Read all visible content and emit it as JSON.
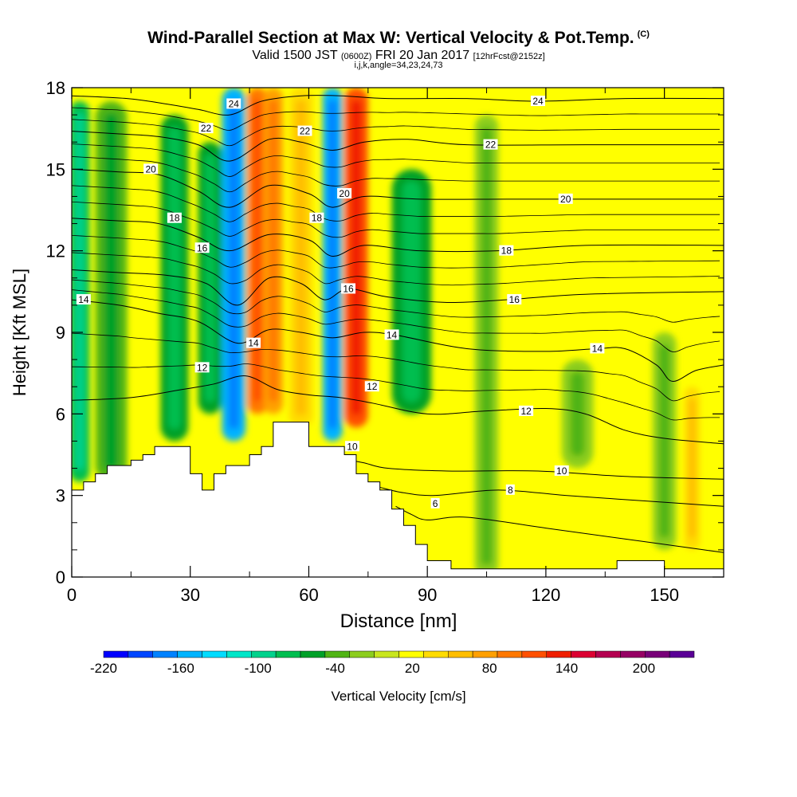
{
  "header": {
    "title": "Wind-Parallel Section at Max W: Vertical Velocity & Pot.Temp.",
    "copyright": "(C)",
    "valid_prefix": "Valid 1500 JST",
    "valid_utc": "(0600Z)",
    "valid_date": "FRI 20 Jan 2017",
    "forecast": "[12hrFcst@2152z]",
    "indices": "i,j,k,angle=34,23,24,73"
  },
  "chart_data": {
    "type": "heatmap",
    "title": "Wind-Parallel Section at Max W: Vertical Velocity & Pot.Temp.",
    "xlabel": "Distance [nm]",
    "ylabel": "Height [Kft MSL]",
    "xlim": [
      0,
      165
    ],
    "ylim": [
      0,
      18
    ],
    "x_ticks": [
      0,
      30,
      60,
      90,
      120,
      150
    ],
    "y_ticks": [
      0,
      3,
      6,
      9,
      12,
      15,
      18
    ],
    "colorbar": {
      "label": "Vertical Velocity [cm/s]",
      "tick_labels": [
        "-220",
        "-160",
        "-100",
        "-40",
        "20",
        "80",
        "140",
        "200"
      ],
      "levels": [
        -220,
        -200,
        -180,
        -160,
        -140,
        -120,
        -100,
        -80,
        -60,
        -40,
        -20,
        0,
        20,
        40,
        60,
        80,
        100,
        120,
        140,
        160,
        180,
        200,
        220
      ],
      "colors": [
        "#0000ff",
        "#0046ff",
        "#0082ff",
        "#00b4ff",
        "#00dcff",
        "#00e6c8",
        "#00d28c",
        "#00be50",
        "#00a028",
        "#50b414",
        "#8ccd1e",
        "#c8e61e",
        "#ffff00",
        "#ffdc00",
        "#ffbe00",
        "#ffa000",
        "#ff7800",
        "#ff5000",
        "#f01e00",
        "#dc0032",
        "#b40050",
        "#960064",
        "#780078",
        "#5a0096"
      ]
    },
    "velocity_field": [
      {
        "x": 2,
        "y": [
          3.5,
          17.5
        ],
        "w": -70,
        "sx": 2.5
      },
      {
        "x": 10,
        "y": [
          3.5,
          17.5
        ],
        "w": -40,
        "sx": 4
      },
      {
        "x": 26,
        "y": [
          5,
          17
        ],
        "w": -60,
        "sx": 3.5
      },
      {
        "x": 35,
        "y": [
          6,
          16
        ],
        "w": -50,
        "sx": 3
      },
      {
        "x": 41,
        "y": [
          5,
          18
        ],
        "w": -150,
        "sx": 3
      },
      {
        "x": 47,
        "y": [
          6,
          18
        ],
        "w": 100,
        "sx": 2.5
      },
      {
        "x": 51,
        "y": [
          6,
          18
        ],
        "w": 80,
        "sx": 2.5
      },
      {
        "x": 58,
        "y": [
          5.5,
          18
        ],
        "w": 40,
        "sx": 3
      },
      {
        "x": 66,
        "y": [
          5,
          18
        ],
        "w": -150,
        "sx": 2.5
      },
      {
        "x": 72,
        "y": [
          5.5,
          18
        ],
        "w": 120,
        "sx": 3
      },
      {
        "x": 86,
        "y": [
          6,
          15
        ],
        "w": -60,
        "sx": 5
      },
      {
        "x": 105,
        "y": [
          0,
          17
        ],
        "w": -20,
        "sx": 3
      },
      {
        "x": 128,
        "y": [
          4,
          8
        ],
        "w": -10,
        "sx": 4
      },
      {
        "x": 157,
        "y": [
          1,
          7
        ],
        "w": 40,
        "sx": 2
      },
      {
        "x": 150,
        "y": [
          1,
          9
        ],
        "w": -20,
        "sx": 3
      }
    ],
    "terrain": [
      [
        0,
        3.2
      ],
      [
        3,
        3.2
      ],
      [
        3,
        3.5
      ],
      [
        6,
        3.5
      ],
      [
        6,
        3.8
      ],
      [
        9,
        3.8
      ],
      [
        9,
        4.1
      ],
      [
        15,
        4.1
      ],
      [
        15,
        4.3
      ],
      [
        18,
        4.3
      ],
      [
        18,
        4.5
      ],
      [
        21,
        4.5
      ],
      [
        21,
        4.8
      ],
      [
        30,
        4.8
      ],
      [
        30,
        3.8
      ],
      [
        33,
        3.8
      ],
      [
        33,
        3.2
      ],
      [
        36,
        3.2
      ],
      [
        36,
        3.8
      ],
      [
        39,
        3.8
      ],
      [
        39,
        4.1
      ],
      [
        45,
        4.1
      ],
      [
        45,
        4.5
      ],
      [
        48,
        4.5
      ],
      [
        48,
        4.8
      ],
      [
        51,
        4.8
      ],
      [
        51,
        5.7
      ],
      [
        60,
        5.7
      ],
      [
        60,
        4.8
      ],
      [
        69,
        4.8
      ],
      [
        69,
        4.5
      ],
      [
        72,
        4.5
      ],
      [
        72,
        3.8
      ],
      [
        75,
        3.8
      ],
      [
        75,
        3.5
      ],
      [
        78,
        3.5
      ],
      [
        78,
        3.2
      ],
      [
        81,
        3.2
      ],
      [
        81,
        2.5
      ],
      [
        84,
        2.5
      ],
      [
        84,
        1.9
      ],
      [
        87,
        1.9
      ],
      [
        87,
        1.2
      ],
      [
        90,
        1.2
      ],
      [
        90,
        0.6
      ],
      [
        96,
        0.6
      ],
      [
        96,
        0.3
      ],
      [
        138,
        0.3
      ],
      [
        138,
        0.6
      ],
      [
        150,
        0.6
      ],
      [
        150,
        0.3
      ],
      [
        165,
        0.3
      ]
    ],
    "theta_contours": [
      {
        "value": 6,
        "label": "6",
        "label_x": 82,
        "pts": [
          [
            82,
            2.6
          ],
          [
            86,
            2.3
          ],
          [
            90,
            2.1
          ],
          [
            100,
            2.2
          ],
          [
            120,
            1.8
          ],
          [
            140,
            1.4
          ],
          [
            160,
            1.0
          ],
          [
            165,
            0.9
          ]
        ]
      },
      {
        "value": 8,
        "label": "8",
        "label_x": 108,
        "pts": [
          [
            78,
            3.3
          ],
          [
            84,
            3.1
          ],
          [
            92,
            3.0
          ],
          [
            108,
            3.2
          ],
          [
            125,
            3.0
          ],
          [
            145,
            2.8
          ],
          [
            165,
            2.6
          ]
        ]
      },
      {
        "value": 10,
        "label": "10",
        "label_x": 118,
        "pts": [
          [
            70,
            4.3
          ],
          [
            74,
            4.2
          ],
          [
            80,
            4.0
          ],
          [
            95,
            3.9
          ],
          [
            118,
            3.9
          ],
          [
            140,
            3.7
          ],
          [
            165,
            3.6
          ]
        ]
      },
      {
        "value": 12,
        "label": "12",
        "label_x": 104,
        "pts": [
          [
            0,
            6.5
          ],
          [
            15,
            6.6
          ],
          [
            28,
            6.9
          ],
          [
            36,
            7.1
          ],
          [
            44,
            7.4
          ],
          [
            52,
            6.9
          ],
          [
            60,
            6.7
          ],
          [
            68,
            6.6
          ],
          [
            76,
            6.4
          ],
          [
            90,
            6.0
          ],
          [
            104,
            6.1
          ],
          [
            120,
            6.2
          ],
          [
            130,
            6.0
          ],
          [
            140,
            5.4
          ],
          [
            150,
            5.1
          ],
          [
            165,
            4.9
          ]
        ]
      },
      {
        "value": 14,
        "label": "14",
        "label_x": 133,
        "pts": [
          [
            0,
            10.2
          ],
          [
            12,
            10.0
          ],
          [
            22,
            9.7
          ],
          [
            32,
            9.4
          ],
          [
            42,
            8.6
          ],
          [
            50,
            9.1
          ],
          [
            58,
            9.0
          ],
          [
            66,
            8.8
          ],
          [
            74,
            9.0
          ],
          [
            82,
            8.9
          ],
          [
            100,
            8.4
          ],
          [
            120,
            8.3
          ],
          [
            133,
            8.4
          ],
          [
            140,
            8.4
          ],
          [
            148,
            7.8
          ],
          [
            152,
            7.2
          ],
          [
            158,
            7.6
          ],
          [
            165,
            7.8
          ]
        ]
      },
      {
        "value": 16,
        "label": "16",
        "label_x": 110,
        "pts": [
          [
            0,
            11.3
          ],
          [
            12,
            11.2
          ],
          [
            24,
            11.1
          ],
          [
            34,
            10.8
          ],
          [
            42,
            10.0
          ],
          [
            50,
            11.0
          ],
          [
            58,
            10.8
          ],
          [
            64,
            10.2
          ],
          [
            70,
            10.6
          ],
          [
            80,
            10.3
          ],
          [
            95,
            10.1
          ],
          [
            110,
            10.2
          ],
          [
            130,
            10.4
          ],
          [
            165,
            10.5
          ]
        ]
      },
      {
        "value": 18,
        "label": "18",
        "label_x": 108,
        "pts": [
          [
            0,
            13.2
          ],
          [
            12,
            13.1
          ],
          [
            22,
            13.0
          ],
          [
            32,
            12.5
          ],
          [
            40,
            12.0
          ],
          [
            50,
            12.6
          ],
          [
            60,
            12.4
          ],
          [
            66,
            11.8
          ],
          [
            74,
            12.2
          ],
          [
            88,
            12.0
          ],
          [
            108,
            12.0
          ],
          [
            130,
            12.2
          ],
          [
            165,
            12.2
          ]
        ]
      },
      {
        "value": 20,
        "label": "20",
        "label_x": 112,
        "pts": [
          [
            0,
            15.0
          ],
          [
            12,
            14.9
          ],
          [
            22,
            14.8
          ],
          [
            32,
            14.2
          ],
          [
            40,
            13.6
          ],
          [
            50,
            14.4
          ],
          [
            60,
            14.1
          ],
          [
            66,
            13.6
          ],
          [
            74,
            14.0
          ],
          [
            88,
            13.9
          ],
          [
            112,
            13.9
          ],
          [
            140,
            13.9
          ],
          [
            165,
            13.9
          ]
        ]
      },
      {
        "value": 22,
        "label": "22",
        "label_x": 100,
        "pts": [
          [
            0,
            16.4
          ],
          [
            12,
            16.3
          ],
          [
            22,
            16.2
          ],
          [
            32,
            15.9
          ],
          [
            40,
            15.3
          ],
          [
            50,
            16.1
          ],
          [
            58,
            16.0
          ],
          [
            66,
            15.7
          ],
          [
            74,
            16.0
          ],
          [
            85,
            16.1
          ],
          [
            100,
            15.9
          ],
          [
            130,
            15.9
          ],
          [
            165,
            15.9
          ]
        ]
      },
      {
        "value": 24,
        "label": "24",
        "label_x": 118,
        "pts": [
          [
            0,
            17.7
          ],
          [
            14,
            17.6
          ],
          [
            24,
            17.4
          ],
          [
            32,
            17.2
          ],
          [
            40,
            17.0
          ],
          [
            48,
            17.5
          ],
          [
            58,
            17.7
          ],
          [
            68,
            17.7
          ],
          [
            80,
            17.6
          ],
          [
            100,
            17.6
          ],
          [
            118,
            17.5
          ],
          [
            140,
            17.6
          ],
          [
            165,
            17.6
          ]
        ]
      }
    ],
    "theta_labels": [
      {
        "text": "24",
        "x": 41,
        "y": 17.4
      },
      {
        "text": "24",
        "x": 118,
        "y": 17.5
      },
      {
        "text": "22",
        "x": 34,
        "y": 16.5
      },
      {
        "text": "22",
        "x": 59,
        "y": 16.4
      },
      {
        "text": "22",
        "x": 106,
        "y": 15.9
      },
      {
        "text": "20",
        "x": 20,
        "y": 15.0
      },
      {
        "text": "20",
        "x": 69,
        "y": 14.1
      },
      {
        "text": "20",
        "x": 125,
        "y": 13.9
      },
      {
        "text": "18",
        "x": 26,
        "y": 13.2
      },
      {
        "text": "18",
        "x": 62,
        "y": 13.2
      },
      {
        "text": "18",
        "x": 110,
        "y": 12.0
      },
      {
        "text": "16",
        "x": 33,
        "y": 12.1
      },
      {
        "text": "16",
        "x": 70,
        "y": 10.6
      },
      {
        "text": "16",
        "x": 112,
        "y": 10.2
      },
      {
        "text": "14",
        "x": 3,
        "y": 10.2
      },
      {
        "text": "14",
        "x": 46,
        "y": 8.6
      },
      {
        "text": "14",
        "x": 81,
        "y": 8.9
      },
      {
        "text": "14",
        "x": 133,
        "y": 8.4
      },
      {
        "text": "12",
        "x": 33,
        "y": 7.7
      },
      {
        "text": "12",
        "x": 76,
        "y": 7.0
      },
      {
        "text": "12",
        "x": 115,
        "y": 6.1
      },
      {
        "text": "10",
        "x": 71,
        "y": 4.8
      },
      {
        "text": "10",
        "x": 124,
        "y": 3.9
      },
      {
        "text": "8",
        "x": 111,
        "y": 3.2
      },
      {
        "text": "6",
        "x": 92,
        "y": 2.7
      }
    ]
  }
}
